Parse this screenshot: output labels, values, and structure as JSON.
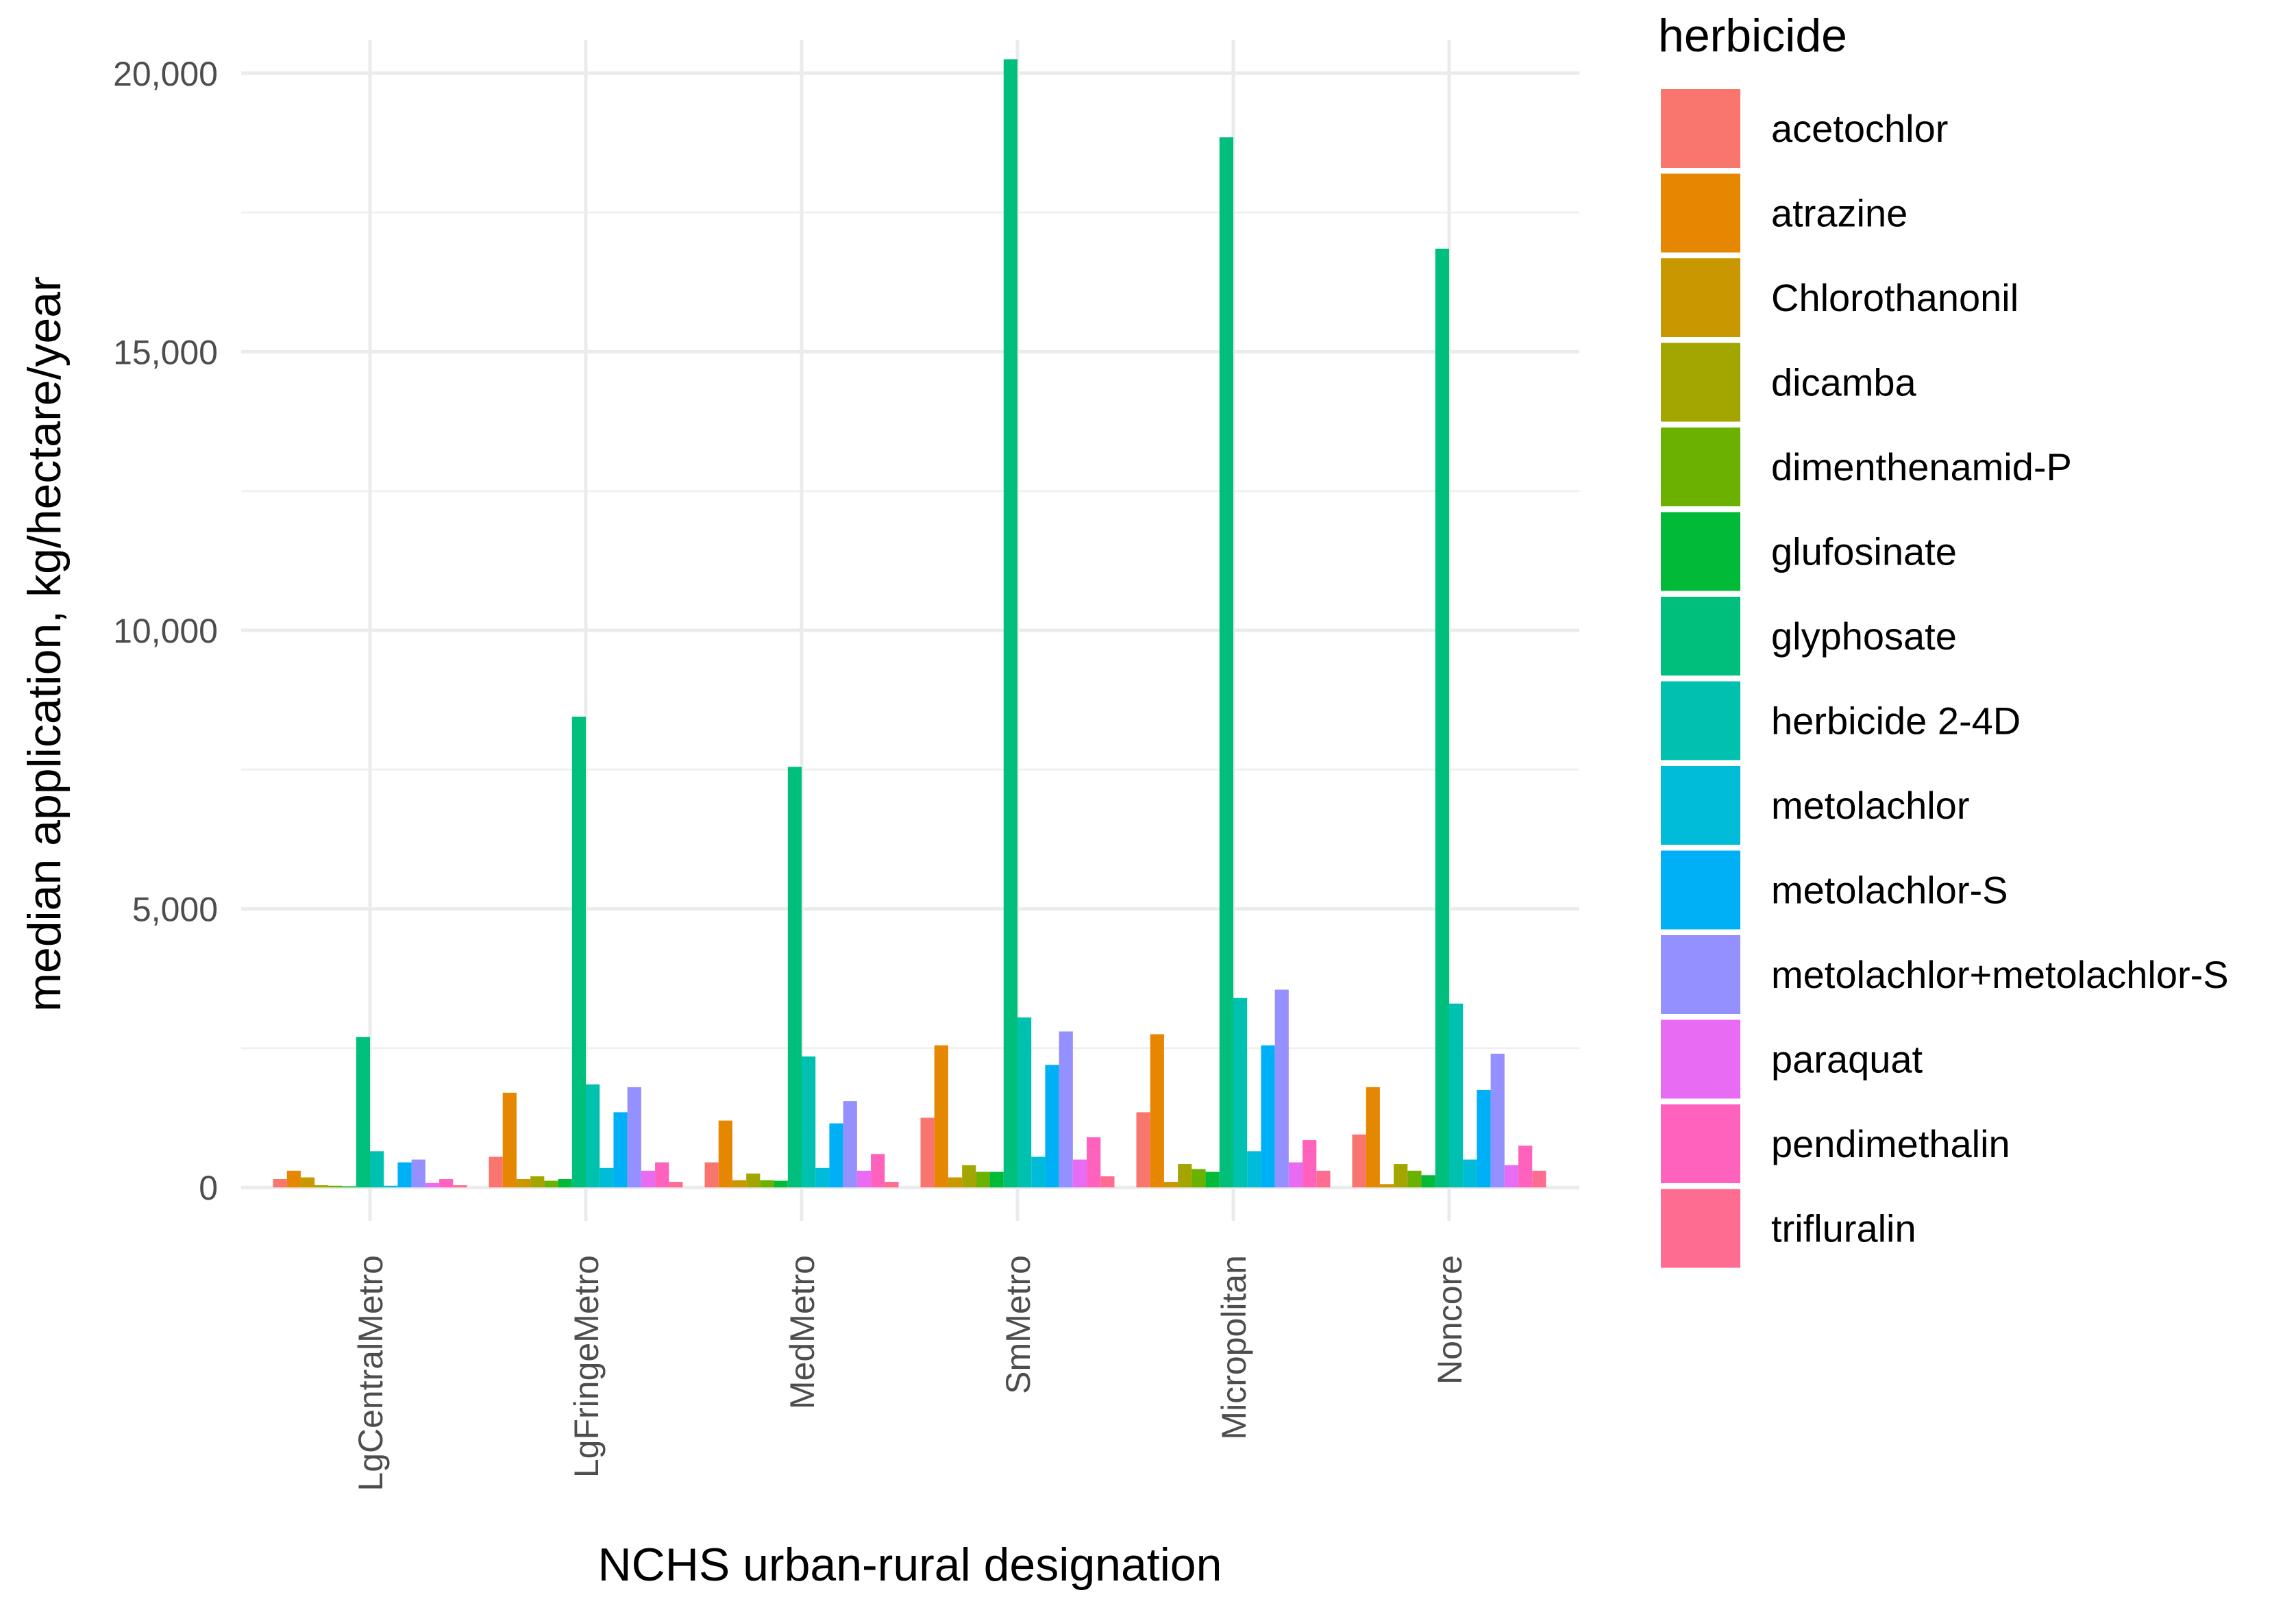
{
  "chart_data": {
    "type": "bar",
    "title": "",
    "xlabel": "NCHS urban-rural designation",
    "ylabel": "median application, kg/hectare/year",
    "ylim": [
      -600,
      20600
    ],
    "yticks": [
      0,
      5000,
      10000,
      15000,
      20000
    ],
    "ytick_labels": [
      "0",
      "5,000",
      "10,000",
      "15,000",
      "20,000"
    ],
    "grid": true,
    "legend": {
      "title": "herbicide",
      "position": "right"
    },
    "categories": [
      "LgCentralMetro",
      "LgFringeMetro",
      "MedMetro",
      "SmMetro",
      "Micropolitan",
      "Noncore"
    ],
    "series": [
      {
        "name": "acetochlor",
        "color": "#F8766D",
        "values": [
          150,
          550,
          450,
          1250,
          1350,
          950
        ]
      },
      {
        "name": "atrazine",
        "color": "#E58700",
        "values": [
          300,
          1700,
          1200,
          2550,
          2750,
          1800
        ]
      },
      {
        "name": "Chlorothanonil",
        "color": "#C99800",
        "values": [
          180,
          150,
          130,
          180,
          100,
          60
        ]
      },
      {
        "name": "dicamba",
        "color": "#A3A500",
        "values": [
          40,
          200,
          250,
          400,
          420,
          420
        ]
      },
      {
        "name": "dimenthenamid-P",
        "color": "#6BB100",
        "values": [
          30,
          120,
          130,
          280,
          330,
          300
        ]
      },
      {
        "name": "glufosinate",
        "color": "#00BA38",
        "values": [
          20,
          150,
          120,
          280,
          280,
          220
        ]
      },
      {
        "name": "glyphosate",
        "color": "#00BF7D",
        "values": [
          2700,
          8450,
          7550,
          20250,
          18850,
          16850
        ]
      },
      {
        "name": "herbicide 2-4D",
        "color": "#00C0AF",
        "values": [
          650,
          1850,
          2350,
          3050,
          3400,
          3300
        ]
      },
      {
        "name": "metolachlor",
        "color": "#00BCD8",
        "values": [
          30,
          350,
          350,
          550,
          650,
          500
        ]
      },
      {
        "name": "metolachlor-S",
        "color": "#00B0F6",
        "values": [
          450,
          1350,
          1150,
          2200,
          2550,
          1750
        ]
      },
      {
        "name": "metolachlor+metolachlor-S",
        "color": "#9590FF",
        "values": [
          500,
          1800,
          1550,
          2800,
          3550,
          2400
        ]
      },
      {
        "name": "paraquat",
        "color": "#E76BF3",
        "values": [
          80,
          300,
          300,
          500,
          450,
          400
        ]
      },
      {
        "name": "pendimethalin",
        "color": "#FF62BC",
        "values": [
          150,
          450,
          600,
          900,
          850,
          750
        ]
      },
      {
        "name": "trifluralin",
        "color": "#FF6C91",
        "values": [
          40,
          100,
          100,
          200,
          300,
          300
        ]
      }
    ]
  }
}
